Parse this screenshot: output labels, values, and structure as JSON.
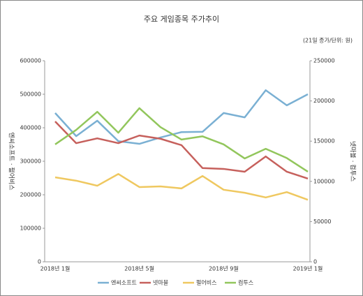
{
  "chart_data": {
    "type": "line",
    "title": "주요 게임종목 주가추이",
    "subtitle": "(21일 종가/단위: 원)",
    "ylabel": "엔씨소프트 · 펄어비스",
    "y2label": "넷마블 · 컴투스",
    "categories": [
      "2018년 1월",
      null,
      null,
      null,
      "2018년 5월",
      null,
      null,
      null,
      "2018년 9월",
      null,
      null,
      null,
      "2019년 1월"
    ],
    "series": [
      {
        "name": "엔씨소프트",
        "color": "#7ab0d3",
        "values": [
          444000,
          375000,
          421000,
          360000,
          352000,
          371000,
          387000,
          388000,
          444000,
          431000,
          512000,
          467000,
          500000
        ]
      },
      {
        "name": "넷마블",
        "color": "#c6605c",
        "axis": "y2",
        "values": [
          174500,
          147500,
          153500,
          147500,
          157000,
          153000,
          145000,
          116500,
          115500,
          112000,
          131000,
          112000,
          103500
        ]
      },
      {
        "name": "펄어비스",
        "color": "#efc860",
        "values": [
          252000,
          242000,
          227000,
          262000,
          223000,
          225000,
          219000,
          256000,
          215000,
          206000,
          192000,
          208000,
          185000
        ]
      },
      {
        "name": "컴투스",
        "color": "#92c65c",
        "axis": "y2",
        "values": [
          146000,
          164000,
          186500,
          160500,
          191000,
          167500,
          152000,
          156000,
          146000,
          128500,
          140500,
          129000,
          112000
        ]
      }
    ],
    "ylim": [
      0,
      600000
    ],
    "yticks": [
      0,
      100000,
      200000,
      300000,
      400000,
      500000,
      600000
    ],
    "y2lim": [
      0,
      250000
    ],
    "y2ticks": [
      0,
      50000,
      100000,
      150000,
      200000,
      250000
    ],
    "grid": false,
    "legend": "bottom"
  }
}
